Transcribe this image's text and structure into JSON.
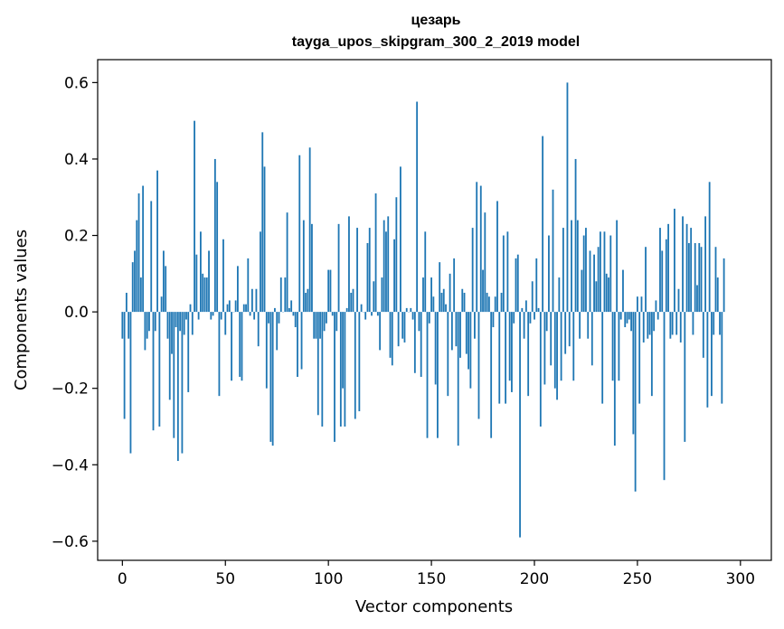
{
  "chart_data": {
    "type": "bar",
    "title": "цезарь",
    "subtitle": "tayga_upos_skipgram_300_2_2019 model",
    "xlabel": "Vector components",
    "ylabel": "Components values",
    "xlim": [
      -12,
      315
    ],
    "ylim": [
      -0.65,
      0.66
    ],
    "xticks": [
      0,
      50,
      100,
      150,
      200,
      250,
      300
    ],
    "xtick_labels": [
      "0",
      "50",
      "100",
      "150",
      "200",
      "250",
      "300"
    ],
    "yticks": [
      -0.6,
      -0.4,
      -0.2,
      0.0,
      0.2,
      0.4,
      0.6
    ],
    "ytick_labels": [
      "−0.6",
      "−0.4",
      "−0.2",
      "0.0",
      "0.2",
      "0.4",
      "0.6"
    ],
    "bar_color": "#1f77b4",
    "values": [
      -0.07,
      -0.28,
      0.05,
      -0.07,
      -0.37,
      0.13,
      0.16,
      0.24,
      0.31,
      0.09,
      0.33,
      -0.1,
      -0.07,
      -0.05,
      0.29,
      -0.31,
      -0.05,
      0.37,
      -0.3,
      0.04,
      0.16,
      0.12,
      -0.07,
      -0.23,
      -0.11,
      -0.33,
      -0.04,
      -0.39,
      -0.05,
      -0.37,
      -0.06,
      -0.02,
      -0.21,
      0.02,
      -0.06,
      0.5,
      0.15,
      -0.02,
      0.21,
      0.1,
      0.09,
      0.09,
      0.16,
      -0.02,
      -0.01,
      0.4,
      0.34,
      -0.22,
      -0.02,
      0.19,
      -0.06,
      0.02,
      0.03,
      -0.18,
      0.0,
      0.03,
      0.12,
      -0.17,
      -0.18,
      0.02,
      0.02,
      0.14,
      -0.01,
      0.06,
      -0.02,
      0.06,
      -0.09,
      0.21,
      0.47,
      0.38,
      -0.2,
      -0.03,
      -0.34,
      -0.35,
      0.01,
      -0.1,
      -0.03,
      0.09,
      0.0,
      0.09,
      0.26,
      0.01,
      0.03,
      -0.01,
      -0.04,
      -0.17,
      0.41,
      -0.15,
      0.24,
      0.05,
      0.06,
      0.43,
      0.23,
      -0.07,
      -0.07,
      -0.27,
      -0.07,
      -0.3,
      -0.05,
      -0.03,
      0.11,
      0.11,
      -0.01,
      -0.34,
      -0.05,
      0.23,
      -0.3,
      -0.2,
      -0.3,
      0.01,
      0.25,
      0.05,
      0.06,
      -0.28,
      0.22,
      -0.26,
      0.02,
      0.0,
      -0.02,
      0.18,
      0.22,
      -0.01,
      0.08,
      0.31,
      -0.01,
      -0.1,
      0.09,
      0.24,
      0.21,
      0.25,
      -0.12,
      -0.14,
      0.19,
      0.3,
      -0.09,
      0.38,
      -0.07,
      -0.08,
      0.01,
      0.0,
      0.01,
      -0.02,
      -0.16,
      0.55,
      -0.05,
      -0.17,
      0.09,
      0.21,
      -0.33,
      -0.03,
      0.09,
      0.04,
      -0.19,
      -0.33,
      0.13,
      0.05,
      0.06,
      0.02,
      -0.22,
      0.1,
      -0.1,
      0.14,
      -0.09,
      -0.35,
      -0.12,
      0.06,
      0.05,
      -0.11,
      -0.15,
      -0.2,
      0.22,
      -0.07,
      0.34,
      -0.28,
      0.33,
      0.11,
      0.26,
      0.05,
      0.04,
      -0.33,
      -0.04,
      0.04,
      0.29,
      -0.24,
      0.05,
      0.2,
      -0.24,
      0.21,
      -0.18,
      -0.21,
      -0.03,
      0.14,
      0.15,
      -0.59,
      0.01,
      -0.07,
      0.03,
      -0.22,
      -0.03,
      0.08,
      -0.02,
      0.14,
      0.01,
      -0.3,
      0.46,
      -0.19,
      -0.05,
      0.2,
      -0.14,
      0.32,
      -0.2,
      -0.23,
      0.09,
      -0.18,
      0.22,
      -0.11,
      0.6,
      -0.09,
      0.24,
      -0.18,
      0.4,
      0.24,
      -0.07,
      0.11,
      0.2,
      0.22,
      -0.07,
      0.16,
      -0.14,
      0.15,
      0.08,
      0.17,
      0.21,
      -0.24,
      0.21,
      0.1,
      0.09,
      0.2,
      -0.18,
      -0.35,
      0.24,
      -0.18,
      -0.02,
      0.11,
      -0.04,
      -0.03,
      -0.02,
      -0.05,
      -0.32,
      -0.47,
      0.04,
      -0.24,
      0.04,
      -0.08,
      0.17,
      -0.07,
      -0.06,
      -0.22,
      -0.05,
      0.03,
      -0.02,
      0.22,
      0.16,
      -0.44,
      0.19,
      0.23,
      -0.07,
      -0.06,
      0.27,
      -0.06,
      0.06,
      -0.08,
      0.25,
      -0.34,
      0.23,
      0.18,
      0.22,
      -0.06,
      0.18,
      0.07,
      0.18,
      0.17,
      -0.12,
      0.25,
      -0.25,
      0.34,
      -0.22,
      -0.06,
      0.17,
      0.09,
      -0.06,
      -0.24,
      0.14
    ]
  }
}
